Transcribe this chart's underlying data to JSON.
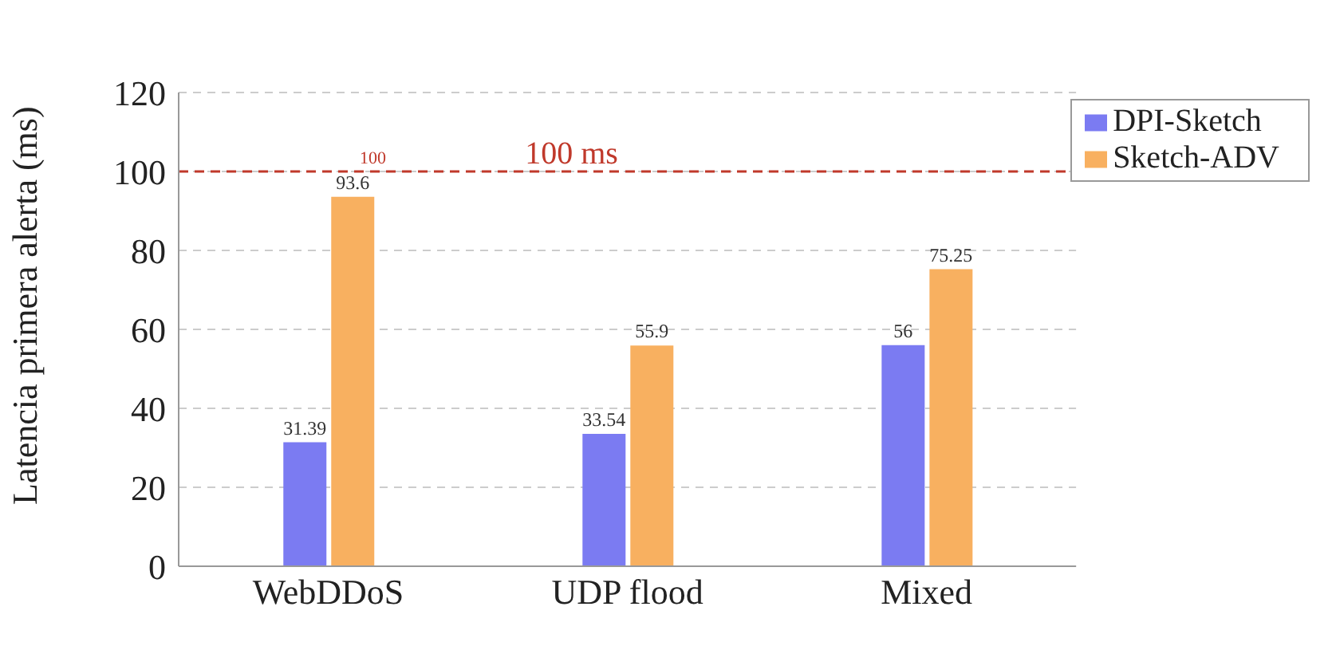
{
  "chart_data": {
    "type": "bar",
    "ylabel": "Latencia primera alerta (ms)",
    "categories": [
      "WebDDoS",
      "UDP flood",
      "Mixed"
    ],
    "series": [
      {
        "name": "DPI-Sketch",
        "color": "#7b7bf2",
        "values": [
          31.39,
          33.54,
          56
        ]
      },
      {
        "name": "Sketch-ADV",
        "color": "#f8b060",
        "values": [
          93.6,
          55.9,
          75.25
        ]
      }
    ],
    "ylim": [
      0,
      120
    ],
    "yticks": [
      0,
      20,
      40,
      60,
      80,
      100,
      120
    ],
    "grid": "y",
    "legend": "top right",
    "data_labels": true,
    "ref_lines": [
      {
        "axis": "y",
        "value": 100,
        "label": "100 ms",
        "color": "#c0392b",
        "line_style": "dashed"
      }
    ],
    "annotations": [
      {
        "text": "100",
        "x": "WebDDoS",
        "y": 100
      }
    ]
  }
}
